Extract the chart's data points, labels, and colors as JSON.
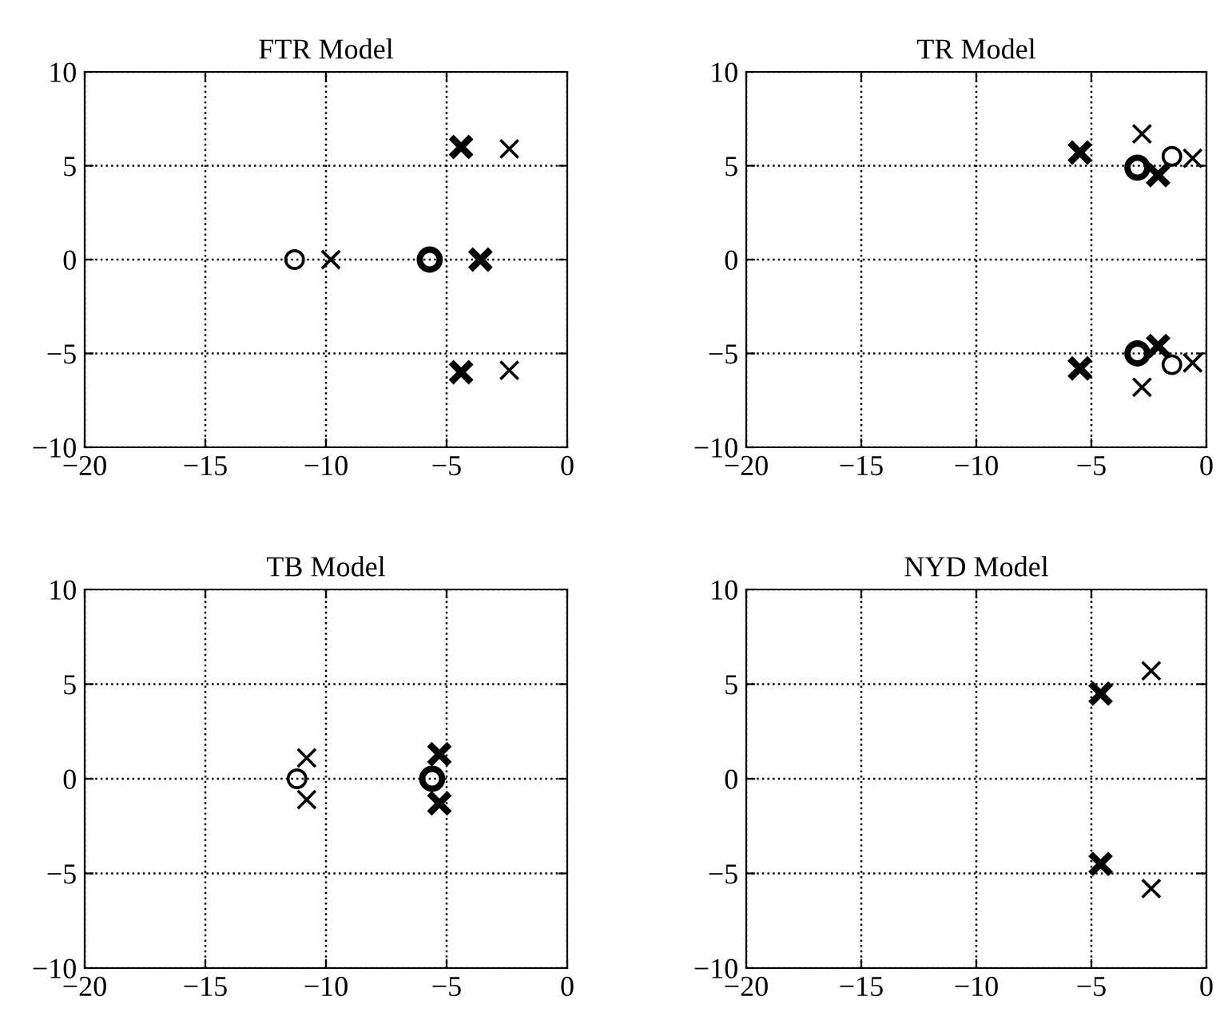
{
  "chart_data": [
    {
      "type": "scatter",
      "title": "FTR Model",
      "xlim": [
        -20,
        0
      ],
      "ylim": [
        -10,
        10
      ],
      "xticks": [
        -20,
        -15,
        -10,
        -5,
        0
      ],
      "yticks": [
        -10,
        -5,
        0,
        5,
        10
      ],
      "grid": true,
      "series": [
        {
          "color": "#000000",
          "marker": "cross",
          "x": [
            -9.8,
            -2.4,
            -2.4
          ],
          "values": [
            0,
            5.9,
            -5.9
          ]
        },
        {
          "color": "#000000",
          "marker": "cross",
          "x": [
            -3.6,
            -4.4,
            -4.4
          ],
          "values": [
            0,
            6.0,
            -6.0
          ]
        },
        {
          "color": "#000000",
          "marker": "circle",
          "x": [
            -11.3
          ],
          "values": [
            0
          ]
        },
        {
          "color": "#000000",
          "marker": "circle",
          "x": [
            -5.7
          ],
          "values": [
            0
          ]
        }
      ]
    },
    {
      "type": "scatter",
      "title": "TR Model",
      "xlim": [
        -20,
        0
      ],
      "ylim": [
        -10,
        10
      ],
      "xticks": [
        -20,
        -15,
        -10,
        -5,
        0
      ],
      "yticks": [
        -10,
        -5,
        0,
        5,
        10
      ],
      "grid": true,
      "series": [
        {
          "color": "#000000",
          "marker": "cross",
          "x": [
            -2.8,
            -2.8,
            -0.6,
            -0.6
          ],
          "values": [
            6.7,
            -6.8,
            5.4,
            -5.5
          ]
        },
        {
          "color": "#000000",
          "marker": "cross",
          "x": [
            -5.5,
            -5.5,
            -2.1,
            -2.1
          ],
          "values": [
            5.7,
            -5.8,
            4.5,
            -4.6
          ]
        },
        {
          "color": "#000000",
          "marker": "circle",
          "x": [
            -1.5,
            -1.5
          ],
          "values": [
            5.5,
            -5.6
          ]
        },
        {
          "color": "#000000",
          "marker": "circle",
          "x": [
            -3.0,
            -3.0
          ],
          "values": [
            4.9,
            -5.0
          ]
        }
      ]
    },
    {
      "type": "scatter",
      "title": "TB Model",
      "xlim": [
        -20,
        0
      ],
      "ylim": [
        -10,
        10
      ],
      "xticks": [
        -20,
        -15,
        -10,
        -5,
        0
      ],
      "yticks": [
        -10,
        -5,
        0,
        5,
        10
      ],
      "grid": true,
      "series": [
        {
          "color": "#000000",
          "marker": "cross",
          "x": [
            -10.8,
            -10.8
          ],
          "values": [
            1.1,
            -1.1
          ]
        },
        {
          "color": "#000000",
          "marker": "cross",
          "x": [
            -5.3,
            -5.3
          ],
          "values": [
            1.3,
            -1.3
          ]
        },
        {
          "color": "#000000",
          "marker": "circle",
          "x": [
            -11.2
          ],
          "values": [
            0
          ]
        },
        {
          "color": "#000000",
          "marker": "circle",
          "x": [
            -5.6
          ],
          "values": [
            0
          ]
        }
      ]
    },
    {
      "type": "scatter",
      "title": "NYD Model",
      "xlim": [
        -20,
        0
      ],
      "ylim": [
        -10,
        10
      ],
      "xticks": [
        -20,
        -15,
        -10,
        -5,
        0
      ],
      "yticks": [
        -10,
        -5,
        0,
        5,
        10
      ],
      "grid": true,
      "series": [
        {
          "color": "#000000",
          "marker": "cross",
          "x": [
            -2.4,
            -2.4
          ],
          "values": [
            5.7,
            -5.8
          ]
        },
        {
          "color": "#000000",
          "marker": "cross",
          "x": [
            -4.6,
            -4.6
          ],
          "values": [
            4.5,
            -4.5
          ]
        }
      ]
    }
  ]
}
